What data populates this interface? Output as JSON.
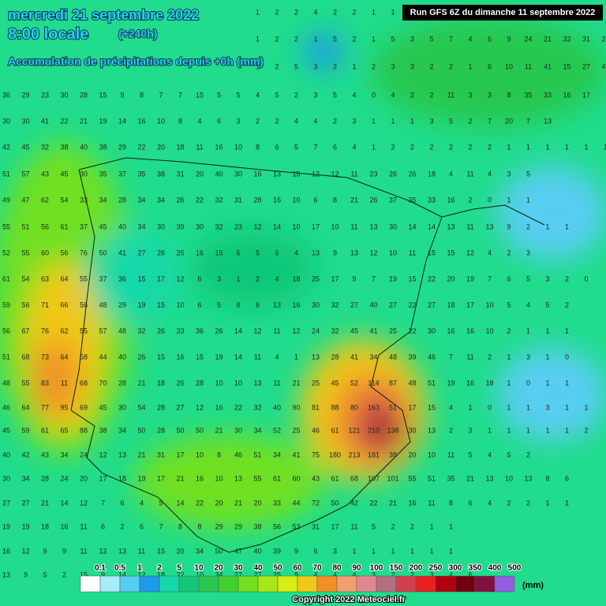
{
  "header": {
    "title": "mercredi 21 septembre 2022",
    "time": "8:00 locale",
    "lead": "(+240h)",
    "subtitle": "Accumulation de précipitations depuis +0h (mm)",
    "run": "Run GFS 6Z du dimanche 11 septembre 2022"
  },
  "grid": {
    "rows": [
      [
        1,
        2,
        2,
        4,
        2,
        2,
        1,
        1
      ],
      [
        1,
        2,
        2,
        1,
        5,
        2,
        1,
        5,
        3,
        5,
        7,
        4,
        6,
        9,
        24,
        21,
        32,
        31,
        21,
        21
      ],
      [
        1,
        2,
        5,
        3,
        2,
        1,
        2,
        3,
        3,
        2,
        2,
        1,
        6,
        10,
        11,
        41,
        15,
        27,
        49,
        2
      ],
      [
        36,
        29,
        23,
        30,
        28,
        15,
        9,
        8,
        7,
        7,
        15,
        5,
        5,
        4,
        5,
        2,
        3,
        5,
        4,
        0,
        4,
        2,
        2,
        11,
        3,
        3,
        8,
        35,
        33,
        16,
        17
      ],
      [
        30,
        30,
        41,
        22,
        21,
        19,
        14,
        16,
        10,
        8,
        4,
        6,
        3,
        2,
        2,
        4,
        4,
        2,
        3,
        1,
        1,
        1,
        3,
        5,
        2,
        7,
        20,
        7,
        13
      ],
      [
        42,
        45,
        32,
        38,
        40,
        38,
        29,
        22,
        20,
        18,
        11,
        16,
        10,
        8,
        6,
        5,
        7,
        6,
        4,
        1,
        2,
        2,
        2,
        2,
        2,
        2,
        1,
        1,
        1,
        1,
        1,
        1
      ],
      [
        51,
        57,
        43,
        45,
        30,
        35,
        37,
        35,
        38,
        31,
        20,
        40,
        30,
        16,
        13,
        15,
        12,
        12,
        11,
        23,
        26,
        26,
        18,
        4,
        11,
        4,
        3,
        5
      ],
      [
        49,
        47,
        62,
        54,
        33,
        34,
        28,
        34,
        34,
        26,
        22,
        32,
        31,
        28,
        16,
        10,
        6,
        8,
        21,
        26,
        37,
        35,
        33,
        16,
        2,
        0,
        1,
        1
      ],
      [
        55,
        51,
        56,
        61,
        37,
        45,
        40,
        34,
        30,
        39,
        30,
        32,
        23,
        12,
        14,
        10,
        17,
        10,
        11,
        13,
        30,
        14,
        14,
        13,
        11,
        13,
        9,
        2,
        1,
        1
      ],
      [
        52,
        55,
        60,
        56,
        76,
        50,
        41,
        27,
        26,
        25,
        16,
        15,
        6,
        5,
        6,
        4,
        13,
        9,
        13,
        12,
        10,
        11,
        15,
        15,
        12,
        4,
        2,
        3
      ],
      [
        61,
        54,
        63,
        64,
        55,
        37,
        36,
        15,
        17,
        12,
        6,
        3,
        1,
        2,
        4,
        18,
        25,
        17,
        9,
        7,
        19,
        15,
        22,
        20,
        19,
        7,
        6,
        5,
        3,
        2,
        0
      ],
      [
        59,
        56,
        71,
        66,
        56,
        48,
        29,
        19,
        15,
        10,
        6,
        5,
        8,
        6,
        13,
        16,
        30,
        32,
        27,
        40,
        27,
        22,
        27,
        18,
        17,
        10,
        5,
        4,
        5,
        2
      ],
      [
        56,
        67,
        76,
        62,
        55,
        57,
        48,
        32,
        26,
        33,
        36,
        26,
        14,
        12,
        11,
        12,
        24,
        32,
        45,
        41,
        25,
        22,
        30,
        16,
        16,
        10,
        2,
        1,
        1,
        1
      ],
      [
        51,
        68,
        73,
        64,
        58,
        44,
        40,
        26,
        15,
        16,
        15,
        19,
        14,
        11,
        4,
        1,
        13,
        28,
        41,
        34,
        48,
        39,
        46,
        7,
        11,
        2,
        1,
        3,
        1,
        0
      ],
      [
        48,
        55,
        83,
        11,
        68,
        70,
        28,
        21,
        18,
        26,
        28,
        10,
        10,
        13,
        11,
        21,
        25,
        45,
        52,
        114,
        87,
        48,
        51,
        19,
        16,
        18,
        1,
        0,
        1,
        1
      ],
      [
        46,
        64,
        77,
        95,
        69,
        45,
        30,
        54,
        28,
        27,
        12,
        16,
        22,
        32,
        40,
        90,
        81,
        88,
        80,
        163,
        51,
        17,
        15,
        4,
        1,
        0,
        1,
        1,
        3,
        1,
        1
      ],
      [
        45,
        59,
        61,
        65,
        88,
        38,
        34,
        50,
        28,
        50,
        50,
        21,
        30,
        34,
        52,
        25,
        46,
        61,
        121,
        210,
        138,
        30,
        13,
        2,
        3,
        1,
        1,
        1,
        1,
        1,
        2
      ],
      [
        40,
        42,
        43,
        34,
        24,
        12,
        13,
        21,
        31,
        17,
        10,
        8,
        46,
        51,
        34,
        41,
        75,
        180,
        213,
        181,
        38,
        20,
        10,
        11,
        5,
        4,
        5,
        2
      ],
      [
        30,
        34,
        28,
        24,
        20,
        17,
        18,
        19,
        17,
        21,
        16,
        10,
        13,
        55,
        61,
        60,
        43,
        61,
        68,
        107,
        101,
        55,
        51,
        35,
        21,
        13,
        10,
        13,
        8,
        6
      ],
      [
        27,
        27,
        21,
        14,
        12,
        7,
        6,
        4,
        5,
        14,
        22,
        20,
        21,
        20,
        33,
        44,
        72,
        50,
        42,
        22,
        21,
        16,
        11,
        8,
        6,
        4,
        2,
        2,
        1,
        1
      ],
      [
        19,
        19,
        18,
        16,
        11,
        6,
        2,
        6,
        7,
        8,
        8,
        29,
        29,
        38,
        56,
        53,
        31,
        17,
        11,
        5,
        2,
        2,
        1,
        1
      ],
      [
        16,
        12,
        9,
        9,
        11,
        12,
        13,
        11,
        15,
        20,
        34,
        50,
        47,
        40,
        39,
        9,
        6,
        3,
        1,
        1,
        1,
        1,
        1,
        1
      ],
      [
        13,
        9,
        5,
        2,
        15,
        9,
        14,
        12,
        18,
        22,
        10,
        34,
        27,
        27,
        25,
        9,
        4,
        4,
        4,
        3,
        2,
        2,
        3,
        4,
        6
      ]
    ]
  },
  "legend": {
    "labels": [
      0.1,
      0.5,
      1,
      2,
      5,
      10,
      20,
      30,
      40,
      50,
      60,
      70,
      80,
      90,
      100,
      150,
      200,
      250,
      300,
      350,
      400,
      500
    ],
    "colors": [
      "#ffffff",
      "#a8ecfa",
      "#58cdf2",
      "#1c9ce8",
      "#14d8a8",
      "#10c878",
      "#28c850",
      "#40d030",
      "#70e020",
      "#a8e818",
      "#d8ee10",
      "#f0c818",
      "#f09028",
      "#f0a070",
      "#e08890",
      "#b07080",
      "#d04050",
      "#e82020",
      "#b00010",
      "#700010",
      "#801040",
      "#9060e0"
    ],
    "unit": "(mm)"
  },
  "footer": {
    "copyright": "Copyright 2022 Meteociel.fr"
  }
}
